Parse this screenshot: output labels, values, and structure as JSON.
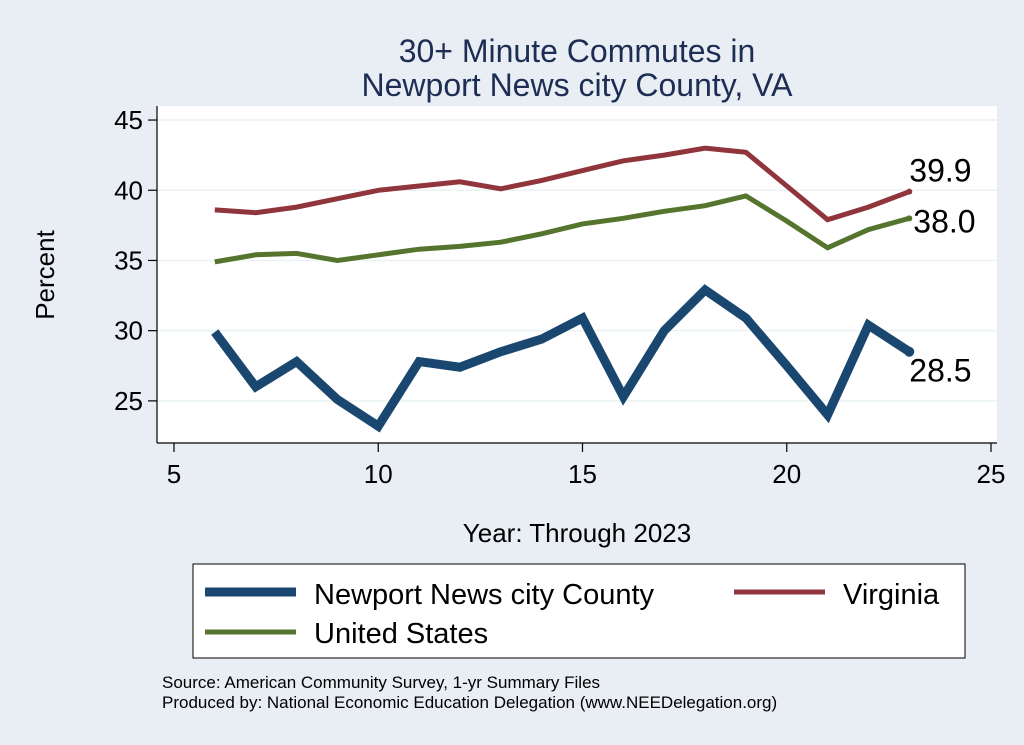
{
  "chart_data": {
    "type": "line",
    "title_lines": [
      "30+ Minute Commutes in",
      "Newport News city County, VA"
    ],
    "xlabel": "Year: Through 2023",
    "ylabel": "Percent",
    "xlim": [
      5,
      25
    ],
    "ylim": [
      22,
      46
    ],
    "x_ticks": [
      5,
      10,
      15,
      20,
      25
    ],
    "y_ticks": [
      25,
      30,
      35,
      40,
      45
    ],
    "grid": true,
    "legend_position": "bottom",
    "series": [
      {
        "name": "Newport News city County",
        "color": "#1a476f",
        "x": [
          6,
          7,
          8,
          9,
          10,
          11,
          12,
          13,
          14,
          15,
          16,
          17,
          18,
          19,
          20,
          21,
          22,
          23
        ],
        "values": [
          29.9,
          26.0,
          27.8,
          25.1,
          23.2,
          27.8,
          27.4,
          28.5,
          29.4,
          30.9,
          25.3,
          30.0,
          32.9,
          30.9,
          27.5,
          24.0,
          30.4,
          28.5
        ],
        "end_label": "28.5"
      },
      {
        "name": "Virginia",
        "color": "#90353b",
        "x": [
          6,
          7,
          8,
          9,
          10,
          11,
          12,
          13,
          14,
          15,
          16,
          17,
          18,
          19,
          20,
          21,
          22,
          23
        ],
        "values": [
          38.6,
          38.4,
          38.8,
          39.4,
          40.0,
          40.3,
          40.6,
          40.1,
          40.7,
          41.4,
          42.1,
          42.5,
          43.0,
          42.7,
          40.3,
          37.9,
          38.8,
          39.9
        ],
        "end_label": "39.9"
      },
      {
        "name": "United States",
        "color": "#55752f",
        "x": [
          6,
          7,
          8,
          9,
          10,
          11,
          12,
          13,
          14,
          15,
          16,
          17,
          18,
          19,
          20,
          21,
          22,
          23
        ],
        "values": [
          34.9,
          35.4,
          35.5,
          35.0,
          35.4,
          35.8,
          36.0,
          36.3,
          36.9,
          37.6,
          38.0,
          38.5,
          38.9,
          39.6,
          37.8,
          35.9,
          37.2,
          38.0
        ],
        "end_label": "38.0"
      }
    ]
  },
  "source_line": "Source: American Community Survey, 1-yr Summary Files",
  "produced_line": "Produced by: National Economic Education Delegation (www.NEEDelegation.org)"
}
